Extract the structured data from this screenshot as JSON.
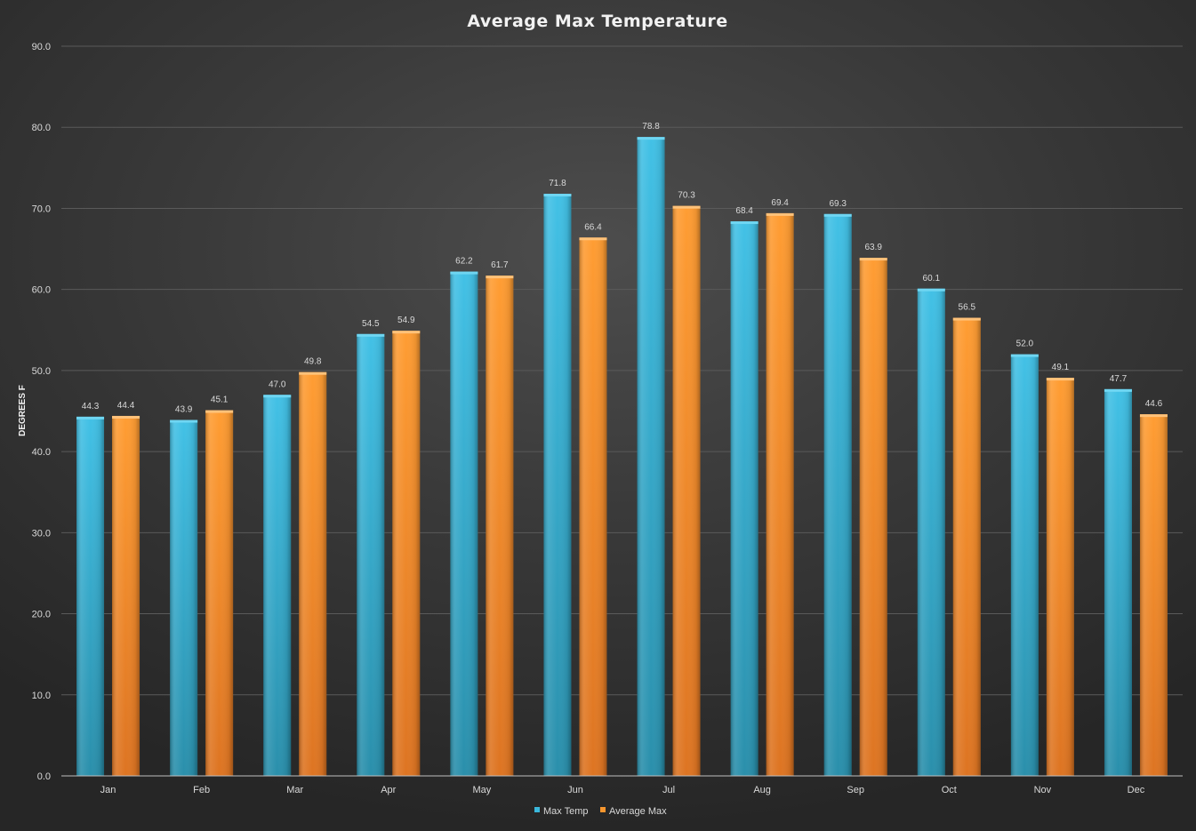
{
  "chart_data": {
    "type": "bar",
    "title": "Average Max Temperature",
    "xlabel": "",
    "ylabel": "DEGREES F",
    "ylim": [
      0,
      90
    ],
    "yticks": [
      "0.0",
      "10.0",
      "20.0",
      "30.0",
      "40.0",
      "50.0",
      "60.0",
      "70.0",
      "80.0",
      "90.0"
    ],
    "grid": true,
    "legend_position": "bottom",
    "categories": [
      "Jan",
      "Feb",
      "Mar",
      "Apr",
      "May",
      "Jun",
      "Jul",
      "Aug",
      "Sep",
      "Oct",
      "Nov",
      "Dec"
    ],
    "series": [
      {
        "name": "Max Temp",
        "color": "#3ab8dc",
        "values": [
          44.3,
          43.9,
          47.0,
          54.5,
          62.2,
          71.8,
          78.8,
          68.4,
          69.3,
          60.1,
          52.0,
          47.7
        ],
        "labels": [
          "44.3",
          "43.9",
          "47.0",
          "54.5",
          "62.2",
          "71.8",
          "78.8",
          "68.4",
          "69.3",
          "60.1",
          "52.0",
          "47.7"
        ]
      },
      {
        "name": "Average Max",
        "color": "#f7962e",
        "values": [
          44.4,
          45.1,
          49.8,
          54.9,
          61.7,
          66.4,
          70.3,
          69.4,
          63.9,
          56.5,
          49.1,
          44.6
        ],
        "labels": [
          "44.4",
          "45.1",
          "49.8",
          "54.9",
          "61.7",
          "66.4",
          "70.3",
          "69.4",
          "63.9",
          "56.5",
          "49.1",
          "44.6"
        ]
      }
    ]
  }
}
